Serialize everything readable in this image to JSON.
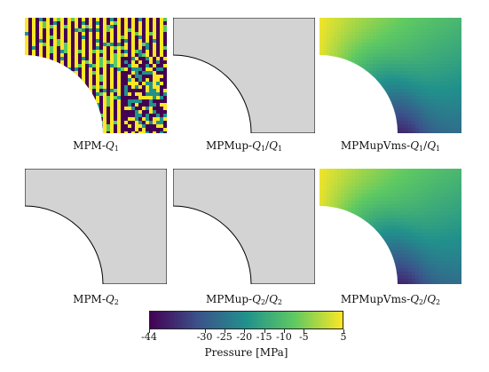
{
  "panels": [
    {
      "method": "MPM",
      "order": "1",
      "mixed": false,
      "fill": "noise"
    },
    {
      "method": "MPMup",
      "order": "1",
      "mixed": true,
      "fill": "gray"
    },
    {
      "method": "MPMupVms",
      "order": "1",
      "mixed": true,
      "fill": "field"
    },
    {
      "method": "MPM",
      "order": "2",
      "mixed": false,
      "fill": "gray"
    },
    {
      "method": "MPMup",
      "order": "2",
      "mixed": true,
      "fill": "gray"
    },
    {
      "method": "MPMupVms",
      "order": "2",
      "mixed": true,
      "fill": "field"
    }
  ],
  "colorbar": {
    "label": "Pressure [MPa]",
    "min": -44,
    "max": 5,
    "ticks": [
      -44,
      -30,
      -25,
      -20,
      -15,
      -10,
      -5,
      5
    ],
    "colormap": [
      "#440154",
      "#3b528b",
      "#21918c",
      "#5ec962",
      "#fde725"
    ]
  },
  "colors": {
    "gray_fill": "#d3d3d3",
    "outline": "#000000"
  }
}
